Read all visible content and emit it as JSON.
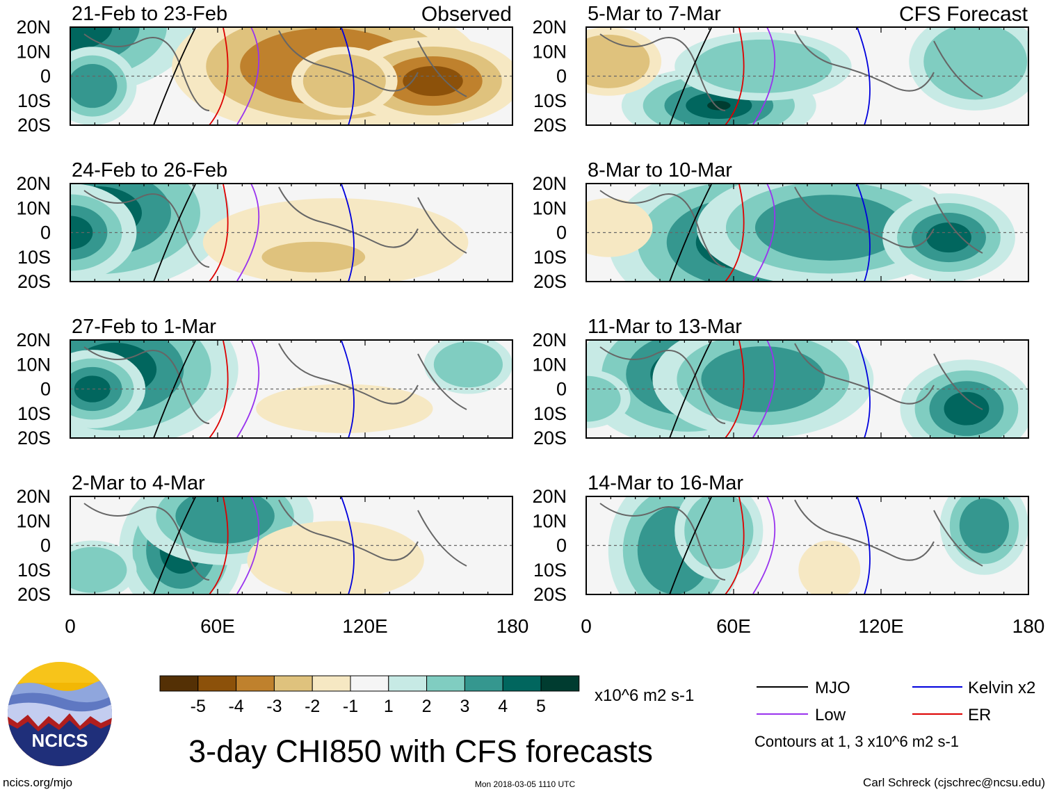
{
  "title": "3-day CHI850 with CFS forecasts",
  "source_url": "ncics.org/mjo",
  "timestamp": "Mon 2018-03-05 1110 UTC",
  "author": "Carl Schreck (cjschrec@ncsu.edu)",
  "logo_text": "NCICS",
  "observed_label": "Observed",
  "forecast_label": "CFS Forecast",
  "lat_ticks": [
    "20N",
    "10N",
    "0",
    "10S",
    "20S"
  ],
  "lon_ticks": [
    "0",
    "60E",
    "120E",
    "180"
  ],
  "panels_left": [
    {
      "label": "21-Feb to 23-Feb"
    },
    {
      "label": "24-Feb to 26-Feb"
    },
    {
      "label": "27-Feb to 1-Mar"
    },
    {
      "label": "2-Mar to 4-Mar"
    }
  ],
  "panels_right": [
    {
      "label": "5-Mar to 7-Mar"
    },
    {
      "label": "8-Mar to 10-Mar"
    },
    {
      "label": "11-Mar to 13-Mar"
    },
    {
      "label": "14-Mar to 16-Mar"
    }
  ],
  "colorbar": {
    "labels": [
      "-5",
      "-4",
      "-3",
      "-2",
      "-1",
      "1",
      "2",
      "3",
      "4",
      "5"
    ],
    "colors": [
      "#543005",
      "#8c510a",
      "#bf812d",
      "#dfc27d",
      "#f6e8c3",
      "#f5f5f5",
      "#c7eae5",
      "#80cdc1",
      "#35978f",
      "#01665e",
      "#003c30"
    ],
    "units": "x10^6 m2 s-1"
  },
  "legend": {
    "items": [
      {
        "name": "MJO",
        "color": "#000000"
      },
      {
        "name": "Kelvin x2",
        "color": "#0000dd"
      },
      {
        "name": "Low",
        "color": "#9933ee"
      },
      {
        "name": "ER",
        "color": "#dd0000"
      }
    ],
    "note": "Contours at 1, 3 x10^6 m2 s-1"
  }
}
